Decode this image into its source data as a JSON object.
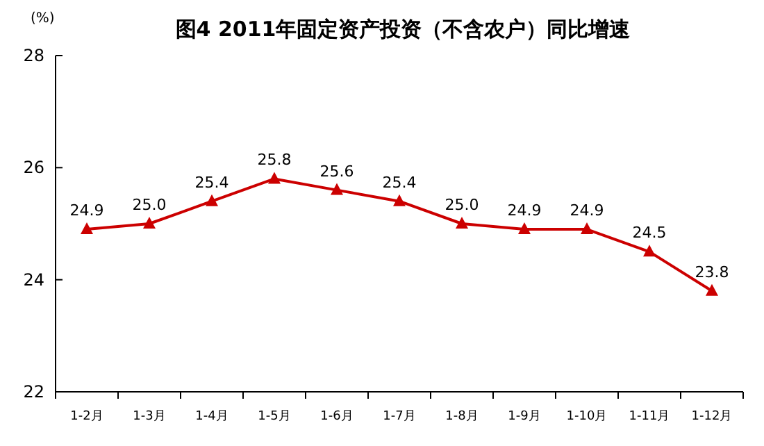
{
  "chart_data": {
    "type": "line",
    "title": "图4 2011年固定资产投资（不含农户）同比增速",
    "ylabel": "(%)",
    "categories": [
      "1-2月",
      "1-3月",
      "1-4月",
      "1-5月",
      "1-6月",
      "1-7月",
      "1-8月",
      "1-9月",
      "1-10月",
      "1-11月",
      "1-12月"
    ],
    "series": [
      {
        "color": "#cc0000",
        "values": [
          24.9,
          25.0,
          25.4,
          25.8,
          25.6,
          25.4,
          25.0,
          24.9,
          24.9,
          24.5,
          23.8
        ]
      }
    ],
    "ylim": [
      22,
      28
    ],
    "yticks": [
      22,
      24,
      26,
      28
    ],
    "marker": "triangle",
    "value_labels": [
      "24.9",
      "25.0",
      "25.4",
      "25.8",
      "25.6",
      "25.4",
      "25.0",
      "24.9",
      "24.9",
      "24.5",
      "23.8"
    ]
  }
}
